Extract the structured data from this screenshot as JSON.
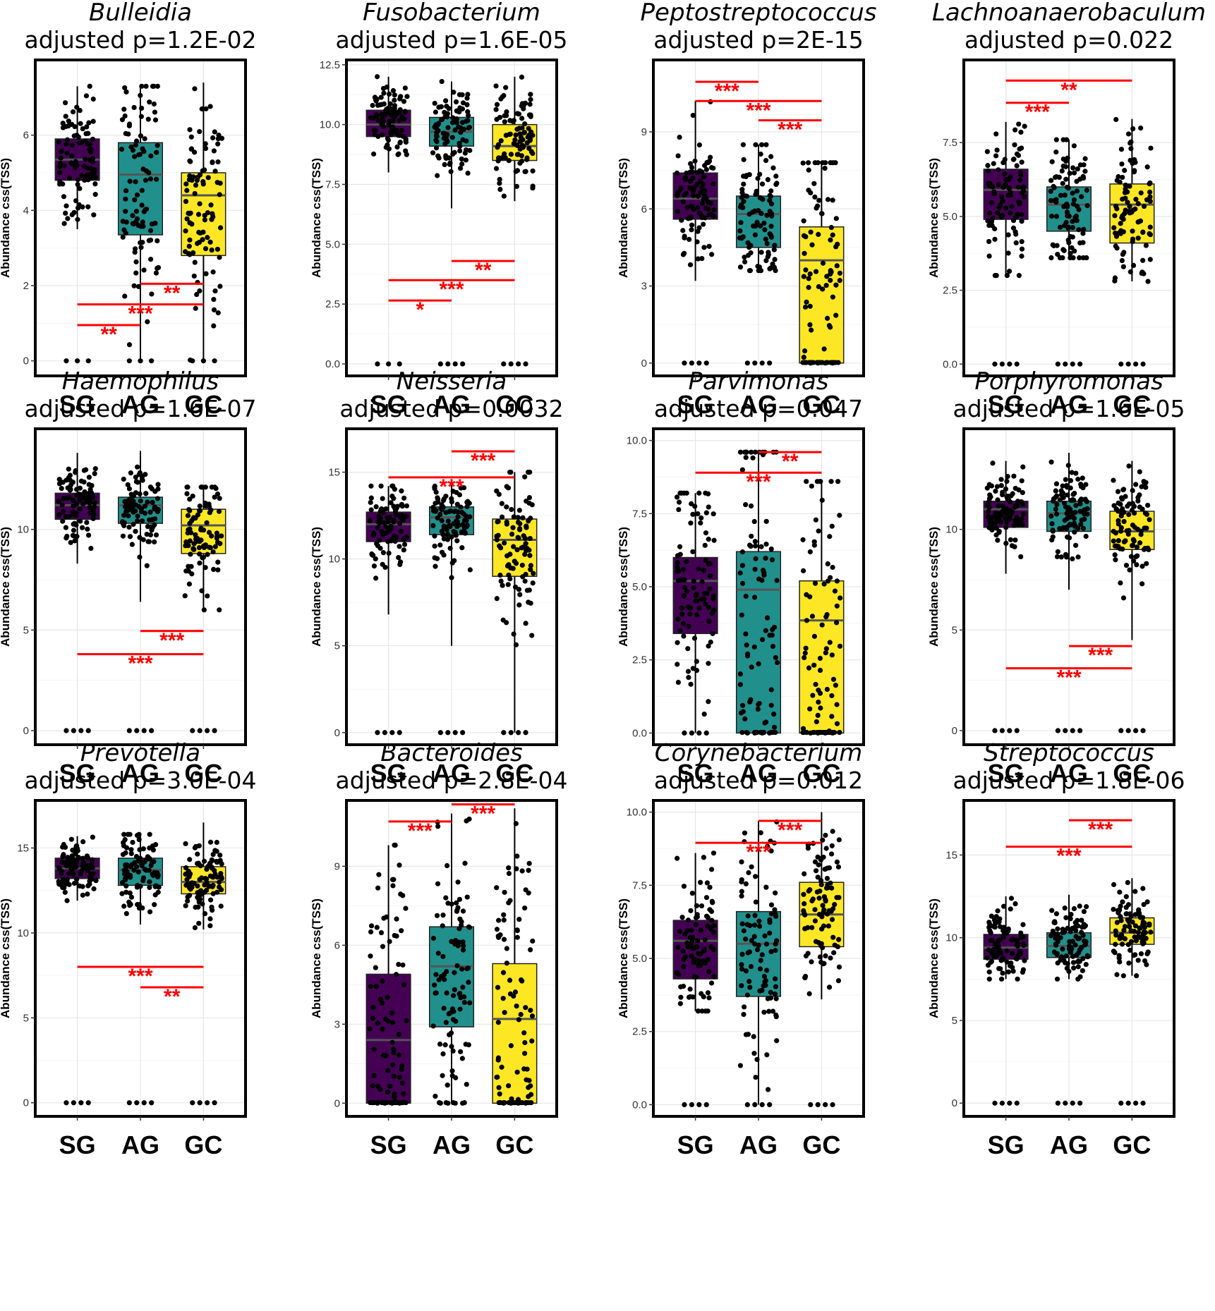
{
  "figure": {
    "colors": {
      "SG": "#440154",
      "AG": "#21908C",
      "GC": "#FDE725",
      "sig": "#FF0000",
      "points": "#000000"
    }
  },
  "chart_data": [
    {
      "type": "box",
      "genus": "Bulleidia",
      "subtitle": "adjusted p=1.2E-02",
      "ylabel": "Abundance css(TSS)",
      "categories": [
        "SG",
        "AG",
        "GC"
      ],
      "ylim": [
        -0.4,
        8.0
      ],
      "yticks": [
        0,
        2,
        4,
        6
      ],
      "ytick_labels": [
        "0",
        "2",
        "4",
        "6"
      ],
      "boxes": [
        {
          "group": "SG",
          "whislo": 3.5,
          "q1": 4.8,
          "med": 5.35,
          "q3": 5.9,
          "whishi": 7.3
        },
        {
          "group": "AG",
          "whislo": 0.0,
          "q1": 3.35,
          "med": 4.95,
          "q3": 5.8,
          "whishi": 7.3
        },
        {
          "group": "GC",
          "whislo": 0.0,
          "q1": 2.8,
          "med": 4.4,
          "q3": 5.0,
          "whishi": 7.4
        }
      ],
      "significance": [
        {
          "from": "SG",
          "to": "AG",
          "y": 0.95,
          "label": "**"
        },
        {
          "from": "SG",
          "to": "GC",
          "y": 1.5,
          "label": "***"
        },
        {
          "from": "AG",
          "to": "GC",
          "y": 2.05,
          "label": "**"
        }
      ]
    },
    {
      "type": "box",
      "genus": "Fusobacterium",
      "subtitle": "adjusted p=1.6E-05",
      "ylabel": "Abundance css(TSS)",
      "categories": [
        "SG",
        "AG",
        "GC"
      ],
      "ylim": [
        -0.5,
        12.7
      ],
      "yticks": [
        0,
        2.5,
        5,
        7.5,
        10,
        12.5
      ],
      "ytick_labels": [
        "0.0",
        "2.5",
        "5.0",
        "7.5",
        "10.0",
        "12.5"
      ],
      "boxes": [
        {
          "group": "SG",
          "whislo": 8.0,
          "q1": 9.5,
          "med": 10.0,
          "q3": 10.6,
          "whishi": 12.0
        },
        {
          "group": "AG",
          "whislo": 6.5,
          "q1": 9.1,
          "med": 9.7,
          "q3": 10.3,
          "whishi": 11.8
        },
        {
          "group": "GC",
          "whislo": 6.8,
          "q1": 8.5,
          "med": 9.1,
          "q3": 10.0,
          "whishi": 12.0
        }
      ],
      "significance": [
        {
          "from": "SG",
          "to": "AG",
          "y": 2.65,
          "label": "*"
        },
        {
          "from": "SG",
          "to": "GC",
          "y": 3.5,
          "label": "***"
        },
        {
          "from": "AG",
          "to": "GC",
          "y": 4.3,
          "label": "**"
        }
      ]
    },
    {
      "type": "box",
      "genus": "Peptostreptococcus",
      "subtitle": "adjusted p=2E-15",
      "ylabel": "Abundance css(TSS)",
      "categories": [
        "SG",
        "AG",
        "GC"
      ],
      "ylim": [
        -0.5,
        11.8
      ],
      "yticks": [
        0,
        3,
        6,
        9
      ],
      "ytick_labels": [
        "0",
        "3",
        "6",
        "9"
      ],
      "boxes": [
        {
          "group": "SG",
          "whislo": 3.2,
          "q1": 5.6,
          "med": 6.4,
          "q3": 7.4,
          "whishi": 10.2
        },
        {
          "group": "AG",
          "whislo": 3.6,
          "q1": 4.5,
          "med": 5.8,
          "q3": 6.5,
          "whishi": 8.5
        },
        {
          "group": "GC",
          "whislo": 0.0,
          "q1": 0.0,
          "med": 4.0,
          "q3": 5.3,
          "whishi": 7.8
        }
      ],
      "significance": [
        {
          "from": "SG",
          "to": "AG",
          "y": 10.95,
          "label": "***"
        },
        {
          "from": "SG",
          "to": "GC",
          "y": 10.2,
          "label": "***"
        },
        {
          "from": "AG",
          "to": "GC",
          "y": 9.45,
          "label": "***"
        }
      ]
    },
    {
      "type": "box",
      "genus": "Lachnoanaerobaculum",
      "subtitle": "adjusted p=0.022",
      "ylabel": "Abundance css(TSS)",
      "categories": [
        "SG",
        "AG",
        "GC"
      ],
      "ylim": [
        -0.4,
        10.3
      ],
      "yticks": [
        0,
        2.5,
        5,
        7.5
      ],
      "ytick_labels": [
        "0.0",
        "2.5",
        "5.0",
        "7.5"
      ],
      "boxes": [
        {
          "group": "SG",
          "whislo": 3.0,
          "q1": 4.9,
          "med": 5.9,
          "q3": 6.6,
          "whishi": 8.2
        },
        {
          "group": "AG",
          "whislo": 3.6,
          "q1": 4.5,
          "med": 5.4,
          "q3": 6.0,
          "whishi": 7.6
        },
        {
          "group": "GC",
          "whislo": 2.8,
          "q1": 4.1,
          "med": 5.4,
          "q3": 6.1,
          "whishi": 8.3
        }
      ],
      "significance": [
        {
          "from": "SG",
          "to": "AG",
          "y": 8.85,
          "label": "***"
        },
        {
          "from": "SG",
          "to": "GC",
          "y": 9.6,
          "label": "**"
        }
      ]
    },
    {
      "type": "box",
      "genus": "Haemophilus",
      "subtitle": "adjusted p=1.6E-07",
      "ylabel": "Abundance css(TSS)",
      "categories": [
        "SG",
        "AG",
        "GC"
      ],
      "ylim": [
        -0.7,
        15.0
      ],
      "yticks": [
        0,
        5,
        10
      ],
      "ytick_labels": [
        "0",
        "5",
        "10"
      ],
      "boxes": [
        {
          "group": "SG",
          "whislo": 8.3,
          "q1": 10.5,
          "med": 11.2,
          "q3": 11.8,
          "whishi": 13.8
        },
        {
          "group": "AG",
          "whislo": 6.4,
          "q1": 10.3,
          "med": 11.2,
          "q3": 11.6,
          "whishi": 13.9
        },
        {
          "group": "GC",
          "whislo": 6.0,
          "q1": 8.8,
          "med": 10.2,
          "q3": 11.0,
          "whishi": 12.1
        }
      ],
      "significance": [
        {
          "from": "SG",
          "to": "GC",
          "y": 3.8,
          "label": "***"
        },
        {
          "from": "AG",
          "to": "GC",
          "y": 4.95,
          "label": "***"
        }
      ]
    },
    {
      "type": "box",
      "genus": "Neisseria",
      "subtitle": "adjusted p=0.0032",
      "ylabel": "Abundance css(TSS)",
      "categories": [
        "SG",
        "AG",
        "GC"
      ],
      "ylim": [
        -0.7,
        17.5
      ],
      "yticks": [
        0,
        5,
        10,
        15
      ],
      "ytick_labels": [
        "0",
        "5",
        "10",
        "15"
      ],
      "boxes": [
        {
          "group": "SG",
          "whislo": 6.8,
          "q1": 11.0,
          "med": 12.0,
          "q3": 12.7,
          "whishi": 14.2
        },
        {
          "group": "AG",
          "whislo": 5.0,
          "q1": 11.4,
          "med": 12.4,
          "q3": 13.0,
          "whishi": 14.6
        },
        {
          "group": "GC",
          "whislo": 0.0,
          "q1": 9.0,
          "med": 11.1,
          "q3": 12.3,
          "whishi": 15.0
        }
      ],
      "significance": [
        {
          "from": "SG",
          "to": "GC",
          "y": 14.7,
          "label": "***"
        },
        {
          "from": "AG",
          "to": "GC",
          "y": 16.2,
          "label": "***"
        }
      ]
    },
    {
      "type": "box",
      "genus": "Parvimonas",
      "subtitle": "adjusted p=0.047",
      "ylabel": "Abundance css(TSS)",
      "categories": [
        "SG",
        "AG",
        "GC"
      ],
      "ylim": [
        -0.4,
        10.4
      ],
      "yticks": [
        0,
        2.5,
        5,
        7.5,
        10
      ],
      "ytick_labels": [
        "0.0",
        "2.5",
        "5.0",
        "7.5",
        "10.0"
      ],
      "boxes": [
        {
          "group": "SG",
          "whislo": 0.0,
          "q1": 3.4,
          "med": 5.2,
          "q3": 6.0,
          "whishi": 8.2
        },
        {
          "group": "AG",
          "whislo": 0.0,
          "q1": 0.0,
          "med": 4.9,
          "q3": 6.2,
          "whishi": 9.6
        },
        {
          "group": "GC",
          "whislo": 0.0,
          "q1": 0.0,
          "med": 3.85,
          "q3": 5.2,
          "whishi": 8.6
        }
      ],
      "significance": [
        {
          "from": "SG",
          "to": "GC",
          "y": 8.9,
          "label": "***"
        },
        {
          "from": "AG",
          "to": "GC",
          "y": 9.6,
          "label": "**"
        }
      ]
    },
    {
      "type": "box",
      "genus": "Porphyromonas",
      "subtitle": "adjusted p=1.6E-05",
      "ylabel": "Abundance css(TSS)",
      "categories": [
        "SG",
        "AG",
        "GC"
      ],
      "ylim": [
        -0.7,
        15.0
      ],
      "yticks": [
        0,
        5,
        10
      ],
      "ytick_labels": [
        "0",
        "5",
        "10"
      ],
      "boxes": [
        {
          "group": "SG",
          "whislo": 7.8,
          "q1": 10.1,
          "med": 11.0,
          "q3": 11.4,
          "whishi": 13.4
        },
        {
          "group": "AG",
          "whislo": 7.0,
          "q1": 9.9,
          "med": 10.8,
          "q3": 11.4,
          "whishi": 13.8
        },
        {
          "group": "GC",
          "whislo": 4.5,
          "q1": 9.0,
          "med": 9.9,
          "q3": 10.9,
          "whishi": 13.4
        }
      ],
      "significance": [
        {
          "from": "SG",
          "to": "GC",
          "y": 3.1,
          "label": "***"
        },
        {
          "from": "AG",
          "to": "GC",
          "y": 4.2,
          "label": "***"
        }
      ]
    },
    {
      "type": "box",
      "genus": "Prevotella",
      "subtitle": "adjusted p=3.0E-04",
      "ylabel": "Abundance css(TSS)",
      "categories": [
        "SG",
        "AG",
        "GC"
      ],
      "ylim": [
        -0.8,
        17.8
      ],
      "yticks": [
        0,
        5,
        10,
        15
      ],
      "ytick_labels": [
        "0",
        "5",
        "10",
        "15"
      ],
      "boxes": [
        {
          "group": "SG",
          "whislo": 11.9,
          "q1": 13.2,
          "med": 13.8,
          "q3": 14.4,
          "whishi": 15.7
        },
        {
          "group": "AG",
          "whislo": 10.5,
          "q1": 12.8,
          "med": 13.7,
          "q3": 14.4,
          "whishi": 15.8
        },
        {
          "group": "GC",
          "whislo": 10.2,
          "q1": 12.3,
          "med": 13.0,
          "q3": 13.9,
          "whishi": 16.5
        }
      ],
      "significance": [
        {
          "from": "SG",
          "to": "GC",
          "y": 8.0,
          "label": "***"
        },
        {
          "from": "AG",
          "to": "GC",
          "y": 6.8,
          "label": "**"
        }
      ]
    },
    {
      "type": "box",
      "genus": "Bacteroides",
      "subtitle": "adjusted p=2.8E-04",
      "ylabel": "Abundance css(TSS)",
      "categories": [
        "SG",
        "AG",
        "GC"
      ],
      "ylim": [
        -0.5,
        11.5
      ],
      "yticks": [
        0,
        3,
        6,
        9
      ],
      "ytick_labels": [
        "0",
        "3",
        "6",
        "9"
      ],
      "boxes": [
        {
          "group": "SG",
          "whislo": 0.0,
          "q1": 0.0,
          "med": 2.4,
          "q3": 4.9,
          "whishi": 9.8
        },
        {
          "group": "AG",
          "whislo": 0.0,
          "q1": 2.9,
          "med": 5.2,
          "q3": 6.7,
          "whishi": 11.0
        },
        {
          "group": "GC",
          "whislo": 0.0,
          "q1": 0.0,
          "med": 3.2,
          "q3": 5.3,
          "whishi": 11.2
        }
      ],
      "significance": [
        {
          "from": "SG",
          "to": "AG",
          "y": 10.7,
          "label": "***"
        },
        {
          "from": "AG",
          "to": "GC",
          "y": 11.35,
          "label": "***"
        }
      ]
    },
    {
      "type": "box",
      "genus": "Corynebacterium",
      "subtitle": "adjusted p=0.012",
      "ylabel": "Abundance css(TSS)",
      "categories": [
        "SG",
        "AG",
        "GC"
      ],
      "ylim": [
        -0.4,
        10.4
      ],
      "yticks": [
        0,
        2.5,
        5,
        7.5,
        10
      ],
      "ytick_labels": [
        "0.0",
        "2.5",
        "5.0",
        "7.5",
        "10.0"
      ],
      "boxes": [
        {
          "group": "SG",
          "whislo": 3.2,
          "q1": 4.3,
          "med": 5.6,
          "q3": 6.3,
          "whishi": 8.6
        },
        {
          "group": "AG",
          "whislo": 0.0,
          "q1": 3.7,
          "med": 5.5,
          "q3": 6.6,
          "whishi": 9.7
        },
        {
          "group": "GC",
          "whislo": 3.6,
          "q1": 5.4,
          "med": 6.5,
          "q3": 7.6,
          "whishi": 10.0
        }
      ],
      "significance": [
        {
          "from": "SG",
          "to": "GC",
          "y": 8.95,
          "label": "***"
        },
        {
          "from": "AG",
          "to": "GC",
          "y": 9.7,
          "label": "***"
        }
      ]
    },
    {
      "type": "box",
      "genus": "Streptococcus",
      "subtitle": "adjusted p=1.8E-06",
      "ylabel": "Abundance css(TSS)",
      "categories": [
        "SG",
        "AG",
        "GC"
      ],
      "ylim": [
        -0.8,
        18.3
      ],
      "yticks": [
        0,
        5,
        10,
        15
      ],
      "ytick_labels": [
        "0",
        "5",
        "10",
        "15"
      ],
      "boxes": [
        {
          "group": "SG",
          "whislo": 7.5,
          "q1": 8.7,
          "med": 9.4,
          "q3": 10.2,
          "whishi": 12.5
        },
        {
          "group": "AG",
          "whislo": 7.5,
          "q1": 8.8,
          "med": 9.5,
          "q3": 10.3,
          "whishi": 12.6
        },
        {
          "group": "GC",
          "whislo": 7.7,
          "q1": 9.6,
          "med": 10.3,
          "q3": 11.2,
          "whishi": 13.6
        }
      ],
      "significance": [
        {
          "from": "SG",
          "to": "GC",
          "y": 15.5,
          "label": "***"
        },
        {
          "from": "AG",
          "to": "GC",
          "y": 17.1,
          "label": "***"
        }
      ]
    }
  ]
}
